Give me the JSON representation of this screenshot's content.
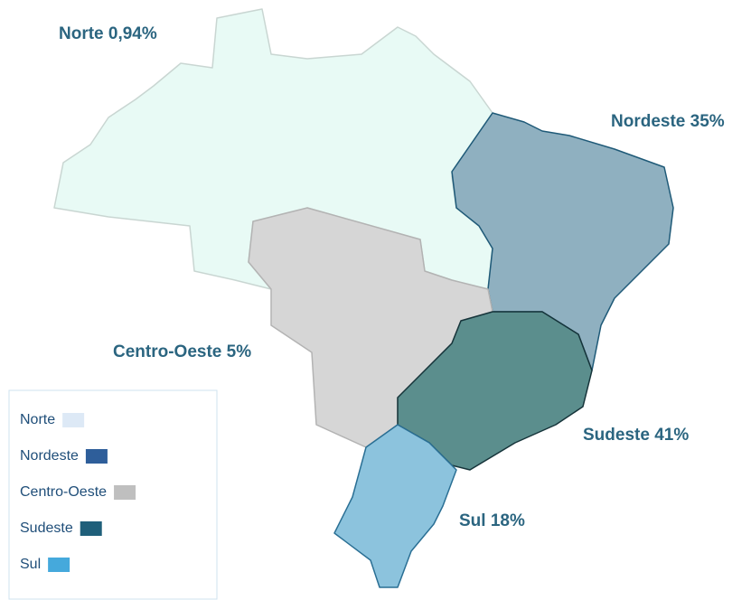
{
  "regions": [
    {
      "label": "Norte 0,94%",
      "fill": "#e8faf5",
      "stroke": "#c9d6d2"
    },
    {
      "label": "Nordeste 35%",
      "fill": "#8fb0c0",
      "stroke": "#1f5a78"
    },
    {
      "label": "Centro-Oeste 5%",
      "fill": "#d6d6d6",
      "stroke": "#b3b3b3"
    },
    {
      "label": "Sudeste 41%",
      "fill": "#5b8e8d",
      "stroke": "#16343a"
    },
    {
      "label": "Sul 18%",
      "fill": "#8cc3dd",
      "stroke": "#2a6f94"
    }
  ],
  "legend": [
    {
      "name": "Norte",
      "color": "#dde9f6"
    },
    {
      "name": "Nordeste",
      "color": "#2e5e9a"
    },
    {
      "name": "Centro-Oeste",
      "color": "#bfbfbf"
    },
    {
      "name": "Sudeste",
      "color": "#1f5f7a"
    },
    {
      "name": "Sul",
      "color": "#45a9dc"
    }
  ]
}
